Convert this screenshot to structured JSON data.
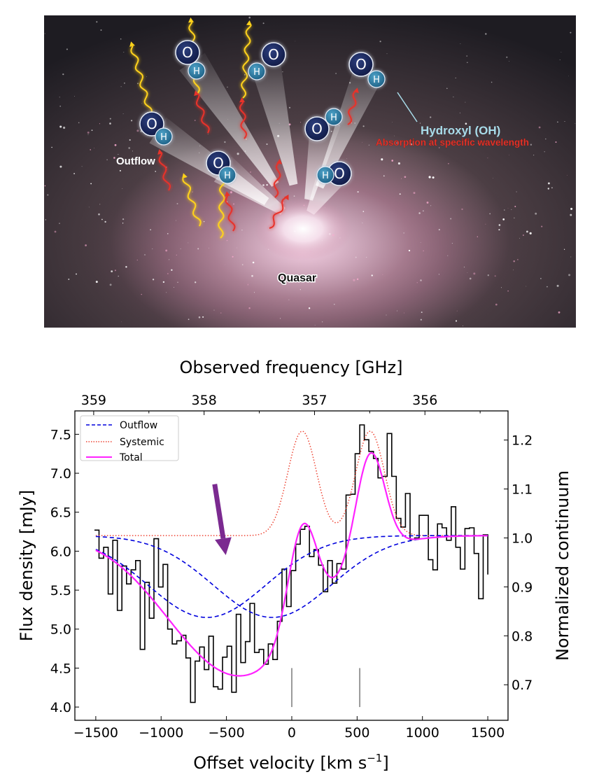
{
  "illustration": {
    "labels": {
      "outflow": "Outflow",
      "quasar": "Quasar",
      "hydroxyl": "Hydroxyl (OH)",
      "absorption": "Absorption at specific wavelength"
    },
    "molecule_atoms": {
      "oxygen": "O",
      "hydrogen": "H"
    },
    "colors": {
      "hydroxyl_label": "#a8dcea",
      "absorption_label": "#e8332a",
      "oxygen_atom": "#1c2a5e",
      "hydrogen_atom": "#2f7fa6",
      "yellow_wave": "#ffd21a",
      "red_wave": "#e8332a"
    }
  },
  "chart_data": {
    "type": "line",
    "title": "",
    "xlabel": "Offset velocity [km s⁻¹]",
    "xlabel_main": "Offset velocity [km s",
    "xlabel_sup": "−1",
    "xlabel_end": "]",
    "ylabel": "Flux density [mJy]",
    "ylabel_right": "Normalized continuum",
    "xlabel_top": "Observed frequency [GHz]",
    "xlim": [
      -1660,
      1655
    ],
    "ylim": [
      3.83,
      7.8
    ],
    "grid": false,
    "x_ticks": [
      -1500,
      -1000,
      -500,
      0,
      500,
      1000,
      1500
    ],
    "x_tick_labels": [
      "−1500",
      "−1000",
      "−500",
      "0",
      "500",
      "1000",
      "1500"
    ],
    "y_ticks": [
      4.0,
      4.5,
      5.0,
      5.5,
      6.0,
      6.5,
      7.0,
      7.5
    ],
    "y_tick_labels": [
      "4.0",
      "4.5",
      "5.0",
      "5.5",
      "6.0",
      "6.5",
      "7.0",
      "7.5"
    ],
    "right_axis": {
      "ticks": [
        0.7,
        0.8,
        0.9,
        1.0,
        1.1,
        1.2
      ],
      "tick_labels": [
        "0.7",
        "0.8",
        "0.9",
        "1.0",
        "1.1",
        "1.2"
      ],
      "continuum_mJy": 6.17,
      "per_0_1_mJy": 0.628
    },
    "top_axis": {
      "ticks_GHz": [
        359,
        358,
        357,
        356
      ],
      "tick_labels": [
        "359",
        "358",
        "357",
        "356"
      ],
      "minor_ticks_GHz": [
        358.5,
        357.5,
        356.5,
        355.5
      ],
      "velocity_at_359GHz": -1516,
      "kms_per_GHz": 845
    },
    "legend": {
      "position": "upper-left",
      "entries": [
        {
          "label": "Outflow",
          "style": "dashed",
          "color": "#0000dd"
        },
        {
          "label": "Systemic",
          "style": "dotted",
          "color": "#ee4433"
        },
        {
          "label": "Total",
          "style": "solid",
          "color": "#ff22ff"
        }
      ]
    },
    "histogram": {
      "name": "Observed spectrum",
      "color": "#000000",
      "bin_start_kms": -1510,
      "bin_width_kms": 35,
      "values": [
        6.27,
        5.91,
        6.05,
        5.45,
        6.14,
        5.24,
        5.81,
        5.58,
        5.76,
        5.88,
        4.74,
        5.6,
        5.14,
        6.16,
        5.54,
        5.83,
        5.0,
        4.81,
        4.85,
        4.92,
        4.63,
        4.06,
        4.59,
        4.77,
        4.48,
        4.91,
        4.26,
        4.23,
        4.64,
        4.78,
        4.19,
        5.19,
        4.57,
        4.84,
        5.33,
        4.7,
        4.74,
        4.55,
        4.81,
        4.61,
        5.1,
        5.77,
        5.29,
        5.75,
        6.09,
        6.28,
        6.32,
        5.93,
        6.02,
        5.82,
        5.48,
        5.88,
        5.59,
        5.84,
        5.77,
        6.72,
        6.73,
        7.25,
        7.62,
        7.43,
        7.28,
        7.19,
        6.94,
        6.96,
        7.51,
        6.96,
        6.42,
        6.31,
        6.74,
        6.15,
        6.17,
        6.46,
        6.46,
        5.89,
        5.76,
        6.35,
        6.3,
        6.14,
        6.57,
        6.05,
        5.77,
        6.29,
        6.3,
        5.97,
        5.39,
        6.21
      ],
      "end_value": 5.7
    },
    "models": {
      "baseline_mJy": 6.2,
      "systemic": [
        {
          "center_kms": 80,
          "amplitude_mJy": 1.34,
          "sigma_kms": 110
        },
        {
          "center_kms": 600,
          "amplitude_mJy": 1.34,
          "sigma_kms": 110
        }
      ],
      "outflow": [
        {
          "center_kms": -650,
          "depth_mJy": 1.05,
          "sigma_kms": 450
        },
        {
          "center_kms": -150,
          "depth_mJy": 1.05,
          "sigma_kms": 450
        }
      ],
      "range_kms": [
        -1500,
        1500
      ]
    },
    "markers": [
      {
        "velocity_kms": 0,
        "y_range_mJy": [
          4.0,
          4.5
        ],
        "color": "#999999"
      },
      {
        "velocity_kms": 520,
        "y_range_mJy": [
          4.0,
          4.5
        ],
        "color": "#999999"
      }
    ],
    "annotation_arrow": {
      "from": {
        "velocity_kms": -590,
        "flux_mJy": 6.86
      },
      "to": {
        "velocity_kms": -505,
        "flux_mJy": 5.95
      },
      "color": "#7b2a90"
    }
  }
}
